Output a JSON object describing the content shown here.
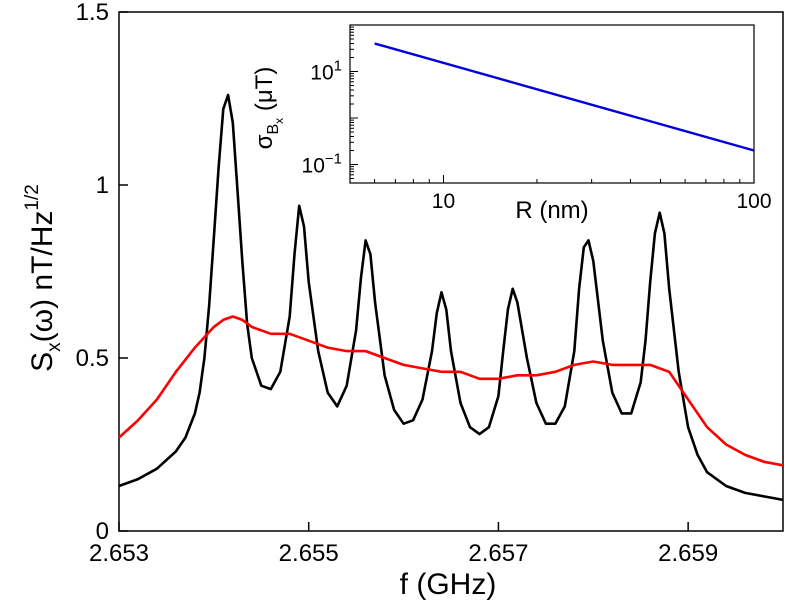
{
  "chart_data": [
    {
      "type": "line",
      "xlabel": "f (GHz)",
      "ylabel": "S_x(ω) nT/Hz^1/2",
      "ylabel_parts": {
        "main": "S",
        "sub": "x",
        "mid": "(ω) nT/Hz",
        "sup": "1/2"
      },
      "xlim": [
        2.653,
        2.66
      ],
      "ylim": [
        0,
        1.5
      ],
      "xticks": [
        2.653,
        2.655,
        2.657,
        2.659
      ],
      "xtick_labels": [
        "2.653",
        "2.655",
        "2.657",
        "2.659"
      ],
      "yticks": [
        0,
        0.5,
        1,
        1.5
      ],
      "ytick_labels": [
        "0",
        "0.5",
        "1",
        "1.5"
      ],
      "grid": false,
      "series": [
        {
          "name": "black",
          "color": "#000000",
          "x": [
            2.653,
            2.6532,
            2.6534,
            2.6536,
            2.6537,
            2.6538,
            2.65385,
            2.6539,
            2.65395,
            2.654,
            2.65405,
            2.6541,
            2.65415,
            2.6542,
            2.65425,
            2.6543,
            2.65435,
            2.6544,
            2.6545,
            2.6546,
            2.6547,
            2.6548,
            2.65485,
            2.6549,
            2.65495,
            2.655,
            2.6551,
            2.6552,
            2.6553,
            2.6554,
            2.6555,
            2.65555,
            2.6556,
            2.65565,
            2.6557,
            2.6558,
            2.6559,
            2.656,
            2.6561,
            2.6562,
            2.6563,
            2.65635,
            2.6564,
            2.65645,
            2.6565,
            2.6566,
            2.6567,
            2.6568,
            2.6569,
            2.657,
            2.65705,
            2.6571,
            2.65715,
            2.6572,
            2.6573,
            2.6574,
            2.6575,
            2.6576,
            2.6577,
            2.6578,
            2.65785,
            2.6579,
            2.65795,
            2.658,
            2.6581,
            2.6582,
            2.6583,
            2.6584,
            2.6585,
            2.65855,
            2.6586,
            2.65865,
            2.6587,
            2.65875,
            2.6588,
            2.6589,
            2.659,
            2.6591,
            2.6592,
            2.6594,
            2.6596,
            2.6598,
            2.66
          ],
          "y": [
            0.13,
            0.15,
            0.18,
            0.23,
            0.27,
            0.34,
            0.4,
            0.5,
            0.65,
            0.85,
            1.05,
            1.22,
            1.26,
            1.18,
            0.98,
            0.78,
            0.6,
            0.5,
            0.42,
            0.41,
            0.46,
            0.62,
            0.8,
            0.94,
            0.88,
            0.72,
            0.52,
            0.4,
            0.36,
            0.42,
            0.58,
            0.73,
            0.84,
            0.8,
            0.66,
            0.45,
            0.35,
            0.31,
            0.32,
            0.38,
            0.52,
            0.63,
            0.69,
            0.64,
            0.52,
            0.37,
            0.3,
            0.28,
            0.3,
            0.39,
            0.52,
            0.64,
            0.7,
            0.66,
            0.5,
            0.37,
            0.31,
            0.31,
            0.36,
            0.52,
            0.7,
            0.82,
            0.84,
            0.78,
            0.55,
            0.4,
            0.34,
            0.34,
            0.43,
            0.55,
            0.72,
            0.86,
            0.92,
            0.86,
            0.7,
            0.46,
            0.3,
            0.22,
            0.17,
            0.13,
            0.11,
            0.1,
            0.09
          ]
        },
        {
          "name": "red",
          "color": "#ff0000",
          "x": [
            2.653,
            2.6532,
            2.6534,
            2.6536,
            2.6538,
            2.654,
            2.6541,
            2.6542,
            2.6543,
            2.6544,
            2.6546,
            2.6548,
            2.655,
            2.6552,
            2.6554,
            2.6556,
            2.6558,
            2.656,
            2.6562,
            2.6564,
            2.6566,
            2.6568,
            2.657,
            2.6572,
            2.6574,
            2.6576,
            2.6578,
            2.658,
            2.6582,
            2.6584,
            2.6586,
            2.6588,
            2.659,
            2.6592,
            2.6594,
            2.6596,
            2.6598,
            2.66
          ],
          "y": [
            0.27,
            0.32,
            0.38,
            0.46,
            0.53,
            0.59,
            0.61,
            0.62,
            0.61,
            0.59,
            0.57,
            0.57,
            0.55,
            0.53,
            0.52,
            0.52,
            0.5,
            0.48,
            0.47,
            0.46,
            0.46,
            0.44,
            0.44,
            0.45,
            0.45,
            0.46,
            0.48,
            0.49,
            0.48,
            0.48,
            0.48,
            0.46,
            0.38,
            0.3,
            0.25,
            0.22,
            0.2,
            0.19
          ]
        }
      ]
    },
    {
      "type": "line",
      "role": "inset",
      "xscale": "log",
      "yscale": "log",
      "xlabel": "R (nm)",
      "ylabel": "σ_Bx (μT)",
      "ylabel_parts": {
        "main": "σ",
        "sub": "B",
        "subsub": "x",
        "rest": " (μT)"
      },
      "xlim": [
        5,
        100
      ],
      "ylim": [
        0.04,
        100
      ],
      "xticks": [
        10,
        100
      ],
      "xtick_labels": [
        "10",
        "100"
      ],
      "yticks": [
        0.1,
        10
      ],
      "ytick_labels": [
        {
          "base": "10",
          "exp": "−1"
        },
        {
          "base": "10",
          "exp": "1"
        }
      ],
      "series": [
        {
          "name": "blue",
          "color": "#0000dd",
          "x": [
            6,
            100
          ],
          "y": [
            40,
            0.2
          ]
        }
      ]
    }
  ]
}
